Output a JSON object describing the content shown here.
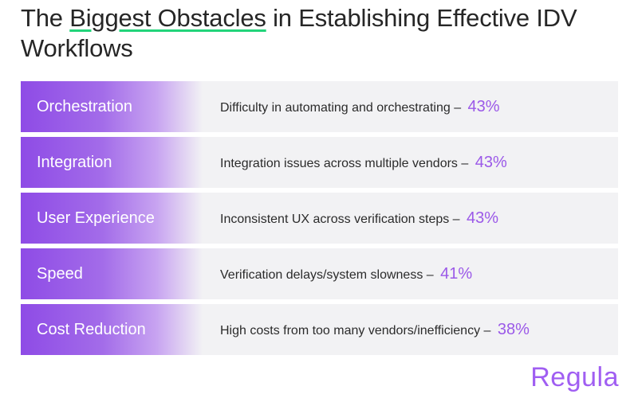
{
  "title": {
    "pre": "The ",
    "highlight": "Biggest Obstacles",
    "post": " in Establishing Effective IDV Workflows"
  },
  "chart_data": {
    "type": "table",
    "title": "The Biggest Obstacles in Establishing Effective IDV Workflows",
    "rows": [
      {
        "category": "Orchestration",
        "description": "Difficulty in automating and orchestrating –",
        "value": 43,
        "value_label": "43%"
      },
      {
        "category": "Integration",
        "description": "Integration issues across multiple vendors –",
        "value": 43,
        "value_label": "43%"
      },
      {
        "category": "User Experience",
        "description": "Inconsistent UX across verification steps –",
        "value": 43,
        "value_label": "43%"
      },
      {
        "category": "Speed",
        "description": "Verification delays/system slowness –",
        "value": 41,
        "value_label": "41%"
      },
      {
        "category": "Cost Reduction",
        "description": "High costs from too many vendors/inefficiency –",
        "value": 38,
        "value_label": "38%"
      }
    ]
  },
  "logo": "Regula",
  "colors": {
    "accent": "#9b59e8",
    "underline": "#22d47a",
    "row_bg": "#f2f2f4"
  }
}
